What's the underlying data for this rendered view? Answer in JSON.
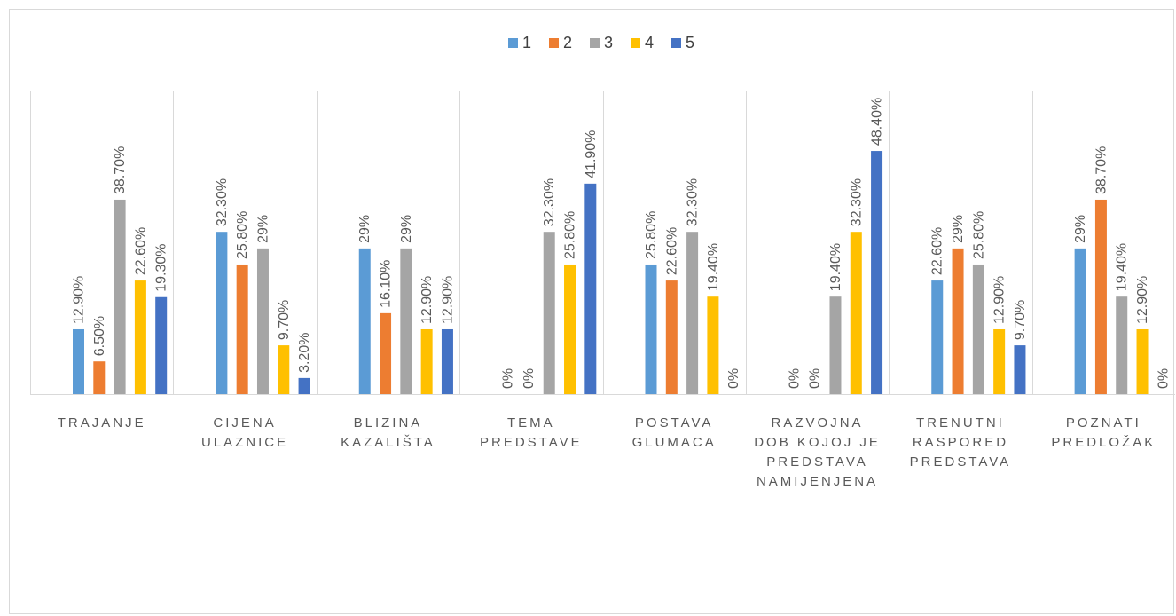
{
  "chart_data": {
    "type": "bar",
    "legend_position": "top",
    "gridlines": "vertical category separators",
    "ylim": [
      0,
      50
    ],
    "categories": [
      [
        "TRAJANJE"
      ],
      [
        "CIJENA",
        "ULAZNICE"
      ],
      [
        "BLIZINA",
        "KAZALIŠTA"
      ],
      [
        "TEMA",
        "PREDSTAVE"
      ],
      [
        "POSTAVA",
        "GLUMACA"
      ],
      [
        "RAZVOJNA",
        "DOB KOJOJ JE",
        "PREDSTAVA",
        "NAMIJENJENA"
      ],
      [
        "TRENUTNI",
        "RASPORED",
        "PREDSTAVA"
      ],
      [
        "POZNATI",
        "PREDLOŽAK"
      ]
    ],
    "series": [
      {
        "name": "1",
        "color": "#5b9bd5",
        "values": [
          12.9,
          32.3,
          29,
          0,
          25.8,
          0,
          22.6,
          29
        ],
        "labels": [
          "12.90%",
          "32.30%",
          "29%",
          "0%",
          "25.80%",
          "0%",
          "22.60%",
          "29%"
        ]
      },
      {
        "name": "2",
        "color": "#ed7d31",
        "values": [
          6.5,
          25.8,
          16.1,
          0,
          22.6,
          0,
          29,
          38.7
        ],
        "labels": [
          "6.50%",
          "25.80%",
          "16.10%",
          "0%",
          "22.60%",
          "0%",
          "29%",
          "38.70%"
        ]
      },
      {
        "name": "3",
        "color": "#a5a5a5",
        "values": [
          38.7,
          29,
          29,
          32.3,
          32.3,
          19.4,
          25.8,
          19.4
        ],
        "labels": [
          "38.70%",
          "29%",
          "29%",
          "32.30%",
          "32.30%",
          "19.40%",
          "25.80%",
          "19.40%"
        ]
      },
      {
        "name": "4",
        "color": "#ffc000",
        "values": [
          22.6,
          9.7,
          12.9,
          25.8,
          19.4,
          32.3,
          12.9,
          12.9
        ],
        "labels": [
          "22.60%",
          "9.70%",
          "12.90%",
          "25.80%",
          "19.40%",
          "32.30%",
          "12.90%",
          "12.90%"
        ]
      },
      {
        "name": "5",
        "color": "#4472c4",
        "values": [
          19.3,
          3.2,
          12.9,
          41.9,
          0,
          48.4,
          9.7,
          0
        ],
        "labels": [
          "19.30%",
          "3.20%",
          "12.90%",
          "41.90%",
          "0%",
          "48.40%",
          "9.70%",
          "0%"
        ]
      }
    ]
  }
}
